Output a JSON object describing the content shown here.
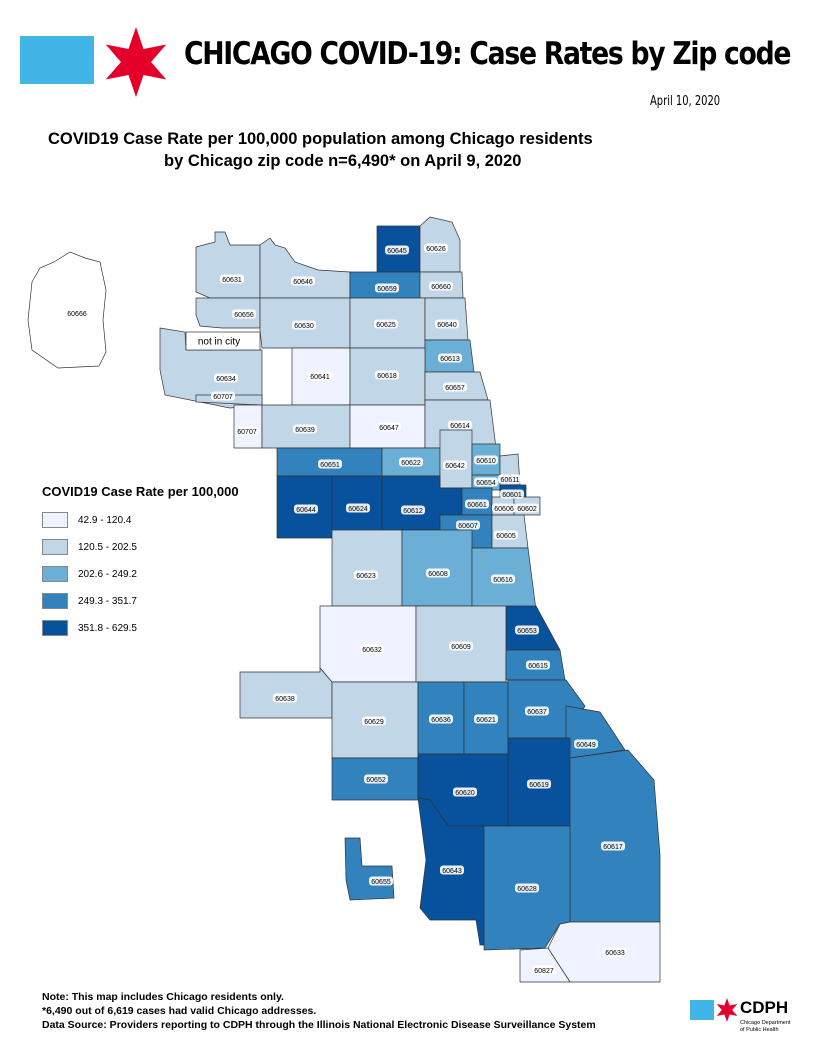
{
  "header": {
    "title": "CHICAGO COVID-19: Case Rates by Zip code",
    "date": "April 10, 2020"
  },
  "map_title": {
    "line1": "COVID19 Case Rate per 100,000 population among Chicago residents",
    "line2": "by Chicago zip code n=6,490* on April 9, 2020"
  },
  "legend": {
    "title": "COVID19 Case Rate per 100,000",
    "classes": [
      {
        "label": "42.9 - 120.4",
        "color": "#eff3ff"
      },
      {
        "label": "120.5 - 202.5",
        "color": "#c1d6e7"
      },
      {
        "label": "202.6 - 249.2",
        "color": "#6baed6"
      },
      {
        "label": "249.3 - 351.7",
        "color": "#3182bd"
      },
      {
        "label": "351.8 - 629.5",
        "color": "#08519c"
      }
    ]
  },
  "map": {
    "not_in_city_label": "not in city",
    "zips": [
      {
        "zip": "60645",
        "class": 4
      },
      {
        "zip": "60626",
        "class": 1
      },
      {
        "zip": "60631",
        "class": 1
      },
      {
        "zip": "60646",
        "class": 1
      },
      {
        "zip": "60659",
        "class": 3
      },
      {
        "zip": "60660",
        "class": 1
      },
      {
        "zip": "60666",
        "class": 0
      },
      {
        "zip": "60656",
        "class": 1
      },
      {
        "zip": "60630",
        "class": 1
      },
      {
        "zip": "60625",
        "class": 1
      },
      {
        "zip": "60640",
        "class": 1
      },
      {
        "zip": "60613",
        "class": 2
      },
      {
        "zip": "60634",
        "class": 1
      },
      {
        "zip": "60641",
        "class": 0
      },
      {
        "zip": "60618",
        "class": 1
      },
      {
        "zip": "60657",
        "class": 1
      },
      {
        "zip": "60707",
        "class": 1
      },
      {
        "zip": "60707",
        "class": 0
      },
      {
        "zip": "60639",
        "class": 1
      },
      {
        "zip": "60647",
        "class": 0
      },
      {
        "zip": "60614",
        "class": 1
      },
      {
        "zip": "60651",
        "class": 3
      },
      {
        "zip": "60622",
        "class": 2
      },
      {
        "zip": "60642",
        "class": 1
      },
      {
        "zip": "60610",
        "class": 2
      },
      {
        "zip": "60611",
        "class": 1
      },
      {
        "zip": "60654",
        "class": 2
      },
      {
        "zip": "60601",
        "class": 4
      },
      {
        "zip": "60644",
        "class": 4
      },
      {
        "zip": "60624",
        "class": 4
      },
      {
        "zip": "60612",
        "class": 4
      },
      {
        "zip": "60661",
        "class": 3
      },
      {
        "zip": "60606",
        "class": 1
      },
      {
        "zip": "60602",
        "class": 1
      },
      {
        "zip": "60607",
        "class": 3
      },
      {
        "zip": "60605",
        "class": 1
      },
      {
        "zip": "60623",
        "class": 1
      },
      {
        "zip": "60608",
        "class": 2
      },
      {
        "zip": "60616",
        "class": 2
      },
      {
        "zip": "60653",
        "class": 4
      },
      {
        "zip": "60632",
        "class": 0
      },
      {
        "zip": "60609",
        "class": 1
      },
      {
        "zip": "60615",
        "class": 3
      },
      {
        "zip": "60638",
        "class": 1
      },
      {
        "zip": "60629",
        "class": 1
      },
      {
        "zip": "60636",
        "class": 3
      },
      {
        "zip": "60621",
        "class": 3
      },
      {
        "zip": "60637",
        "class": 3
      },
      {
        "zip": "60649",
        "class": 3
      },
      {
        "zip": "60652",
        "class": 3
      },
      {
        "zip": "60620",
        "class": 4
      },
      {
        "zip": "60619",
        "class": 4
      },
      {
        "zip": "60617",
        "class": 3
      },
      {
        "zip": "60655",
        "class": 3
      },
      {
        "zip": "60643",
        "class": 4
      },
      {
        "zip": "60628",
        "class": 3
      },
      {
        "zip": "60633",
        "class": 0
      },
      {
        "zip": "60827",
        "class": 0
      }
    ]
  },
  "footer": {
    "note1": "Note: This map includes Chicago residents only.",
    "note2": "*6,490 out of 6,619 cases had valid Chicago addresses.",
    "note3": "Data Source: Providers reporting to CDPH through the Illinois National Electronic Disease Surveillance System"
  },
  "cdph": {
    "abbr": "CDPH",
    "name": "Chicago Department of Public Health",
    "flag_color": "#41b6e6",
    "star_color": "#e4002b"
  }
}
